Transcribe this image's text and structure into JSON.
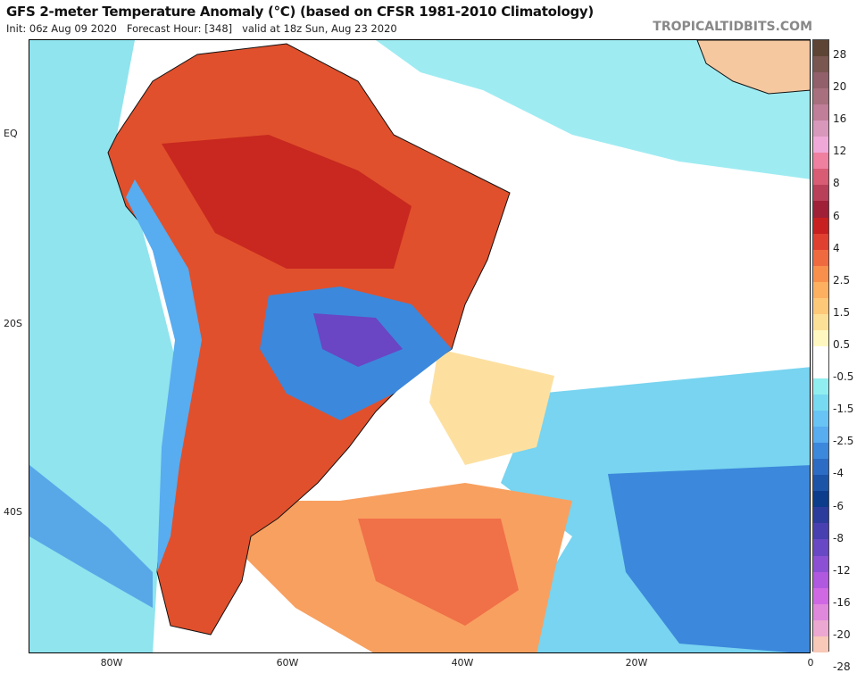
{
  "header": {
    "title": "GFS 2-meter Temperature Anomaly (°C) (based on CFSR 1981-2010 Climatology)",
    "subtitle": "Init: 06z Aug 09 2020   Forecast Hour: [348]   valid at 18z Sun, Aug 23 2020",
    "brand": "TROPICALTIDBITS.COM"
  },
  "map": {
    "lat_labels": [
      "EQ",
      "20S",
      "40S"
    ],
    "lon_labels": [
      "80W",
      "60W",
      "40W",
      "20W",
      "0"
    ],
    "colors": {
      "warm": "#e0502c",
      "hot": "#c8281f",
      "cold": "#2f6fcc",
      "very_cold": "#6a45c4",
      "cool": "#8fe8f0",
      "mild": "#fde0a0",
      "ocean": "#ffffff"
    }
  },
  "colorbar": {
    "labels": [
      "28",
      "20",
      "16",
      "12",
      "8",
      "6",
      "4",
      "2.5",
      "1.5",
      "0.5",
      "-0.5",
      "-1.5",
      "-2.5",
      "-4",
      "-6",
      "-8",
      "-12",
      "-16",
      "-20",
      "-28"
    ],
    "colors": [
      "#5e4434",
      "#7a5650",
      "#92606a",
      "#a8707e",
      "#c07e98",
      "#d898bc",
      "#f0a8d8",
      "#f080a0",
      "#d85c74",
      "#b84058",
      "#a02038",
      "#c82020",
      "#e04030",
      "#f06a40",
      "#f8904c",
      "#fcb060",
      "#fdc878",
      "#fde098",
      "#fef8c0",
      "#ffffff",
      "#ffffff",
      "#90eef0",
      "#78daf0",
      "#68c4f4",
      "#58acf0",
      "#3c88dc",
      "#2c6cc4",
      "#1c54a8",
      "#0c3c8c",
      "#2c3c9c",
      "#4840b0",
      "#6848c4",
      "#8c50d4",
      "#b058e0",
      "#d068e4",
      "#e088dc",
      "#eca8d0",
      "#f8c8b8"
    ]
  }
}
